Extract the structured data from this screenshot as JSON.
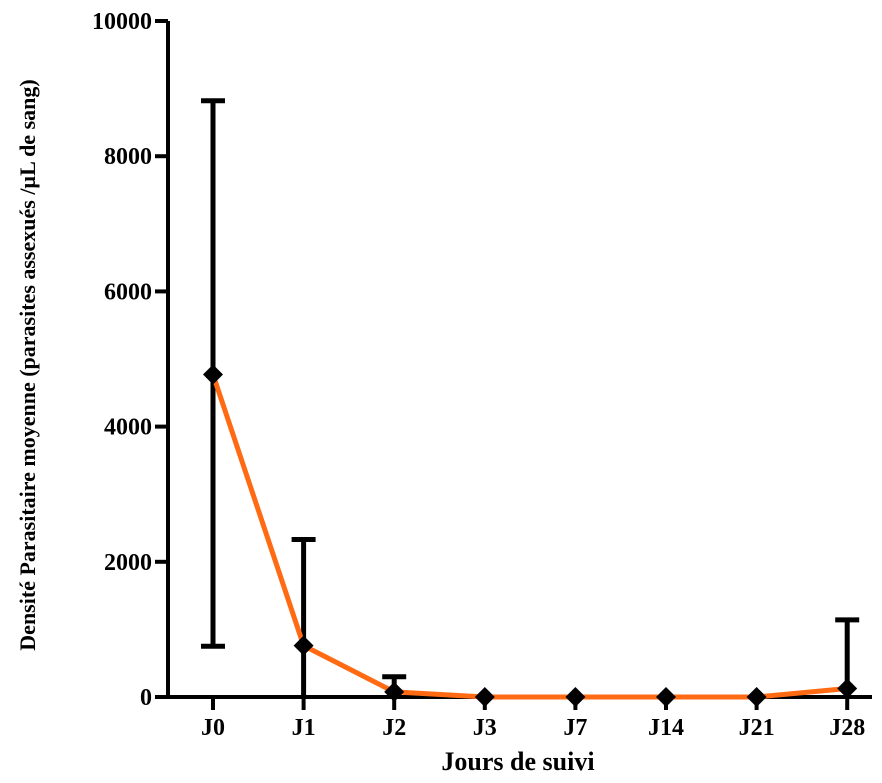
{
  "chart_data": {
    "type": "line",
    "title": "",
    "xlabel": "Jours de suivi",
    "ylabel": "Densité Parasitaire moyenne (parasites assexués /µL de sang)",
    "categories": [
      "J0",
      "J1",
      "J2",
      "J3",
      "J7",
      "J14",
      "J21",
      "J28"
    ],
    "ylim": [
      0,
      10000
    ],
    "yticks": [
      "0",
      "2000",
      "4000",
      "6000",
      "8000",
      "10000"
    ],
    "series": [
      {
        "values": [
          4770,
          760,
          75,
          0,
          0,
          0,
          0,
          125
        ],
        "error_low": [
          750,
          0,
          0,
          0,
          0,
          0,
          0,
          0
        ],
        "error_high": [
          8820,
          2330,
          300,
          0,
          0,
          0,
          0,
          1140
        ],
        "line_color": "#ff6a13",
        "marker_color": "#000000",
        "marker": "diamond"
      }
    ],
    "grid": false,
    "legend": "none"
  }
}
